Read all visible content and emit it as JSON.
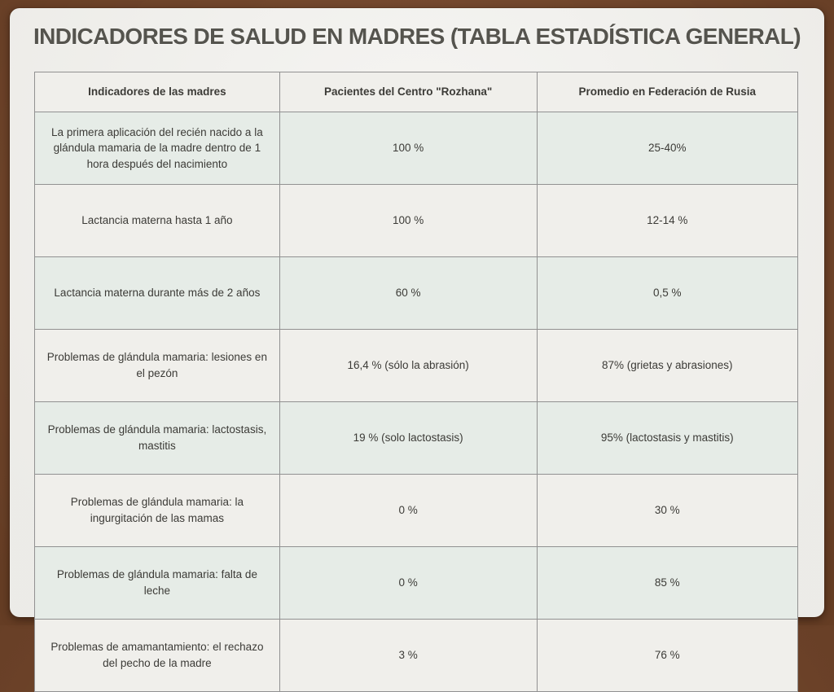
{
  "slide": {
    "title": "INDICADORES DE SALUD EN MADRES (TABLA ESTADÍSTICA GENERAL)"
  },
  "table": {
    "headers": [
      "Indicadores de las madres",
      "Pacientes del Centro \"Rozhana\"",
      "Promedio en Federación de Rusia"
    ],
    "rows": [
      [
        "La primera aplicación del recién nacido a la glándula mamaria de la madre dentro de 1 hora después del nacimiento",
        "100 %",
        "25-40%"
      ],
      [
        "Lactancia materna hasta 1 año",
        "100 %",
        "12-14 %"
      ],
      [
        "Lactancia materna durante más de 2 años",
        "60 %",
        "0,5 %"
      ],
      [
        "Problemas de glándula mamaria: lesiones en el pezón",
        "16,4 % (sólo la abrasión)",
        "87% (grietas y abrasiones)"
      ],
      [
        "Problemas de glándula mamaria: lactostasis, mastitis",
        "19 % (solo lactostasis)",
        "95% (lactostasis y mastitis)"
      ],
      [
        "Problemas de glándula mamaria: la ingurgitación de las mamas",
        "0 %",
        "30 %"
      ],
      [
        "Problemas de glándula mamaria: falta de leche",
        "0 %",
        "85 %"
      ],
      [
        "Problemas de amamantamiento: el rechazo del pecho de la madre",
        "3 %",
        "76 %"
      ]
    ]
  },
  "colors": {
    "frame_brown": "#7b4a2c",
    "card_paper": "#f1f0ec",
    "row_mint": "#e6ece7",
    "row_paper": "#f0efeb",
    "table_border": "#919191",
    "title_text": "#55544e",
    "cell_text": "#3c3b37"
  }
}
